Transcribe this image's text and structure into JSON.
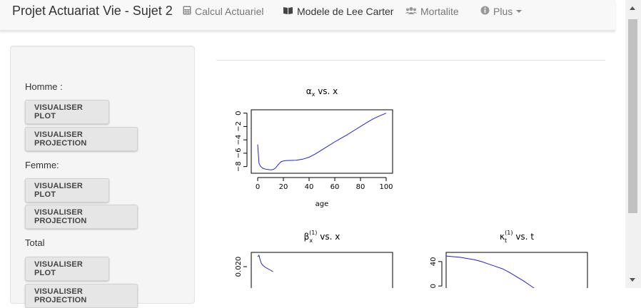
{
  "navbar": {
    "brand": "Projet Actuariat Vie - Sujet 2",
    "items": [
      {
        "label": "Calcul Actuariel",
        "icon": "calculator-icon"
      },
      {
        "label": "Modele de Lee Carter",
        "icon": "book-icon"
      },
      {
        "label": "Mortalite",
        "icon": "users-icon"
      },
      {
        "label": "Plus",
        "icon": "info-circle-icon"
      }
    ]
  },
  "sidebar": {
    "groups": [
      {
        "label": "Homme :",
        "buttons": [
          "VISUALISER PLOT",
          "VISUALISER PROJECTION"
        ]
      },
      {
        "label": "Femme:",
        "buttons": [
          "VISUALISER PLOT",
          "VISUALISER PROJECTION"
        ]
      },
      {
        "label": "Total",
        "buttons": [
          "VISUALISER PLOT",
          "VISUALISER PROJECTION"
        ]
      }
    ]
  },
  "colors": {
    "series": "#2020e0",
    "navbar_bg": "#f8f8f8",
    "sidebar_bg": "#f5f5f5",
    "button_bg": "#e6e6e6"
  },
  "chart_data": [
    {
      "type": "line",
      "title": "αx vs. x",
      "xlabel": "age",
      "ylabel": "",
      "xlim": [
        -5,
        105
      ],
      "ylim": [
        -9,
        0.5
      ],
      "xticks": [
        0,
        20,
        40,
        60,
        80,
        100
      ],
      "yticks": [
        0,
        -2,
        -4,
        -6,
        -8
      ],
      "x": [
        0,
        1,
        2,
        3,
        4,
        6,
        8,
        10,
        12,
        14,
        16,
        18,
        20,
        22,
        25,
        30,
        35,
        40,
        45,
        50,
        55,
        60,
        65,
        70,
        75,
        80,
        85,
        90,
        95,
        100
      ],
      "y": [
        -4.7,
        -7.5,
        -7.9,
        -8.1,
        -8.25,
        -8.38,
        -8.45,
        -8.5,
        -8.45,
        -8.2,
        -7.7,
        -7.3,
        -7.15,
        -7.1,
        -7.08,
        -7.05,
        -6.9,
        -6.6,
        -6.1,
        -5.5,
        -4.9,
        -4.3,
        -3.75,
        -3.2,
        -2.6,
        -2.0,
        -1.4,
        -0.85,
        -0.4,
        0.0
      ]
    },
    {
      "type": "line",
      "title": "βx(1) vs. x",
      "xlabel": "",
      "ylabel": "",
      "xlim": [
        -5,
        105
      ],
      "ylim": [
        0.0,
        0.03
      ],
      "yticks": [
        0.02
      ],
      "ytick_labels": [
        "0.020"
      ],
      "x": [
        0,
        1,
        2,
        3,
        4,
        6,
        8,
        10,
        12
      ],
      "y": [
        0.027,
        0.028,
        0.0245,
        0.022,
        0.021,
        0.0195,
        0.0185,
        0.0175,
        0.0165
      ]
    },
    {
      "type": "line",
      "title": "κt(1) vs. t",
      "xlabel": "",
      "ylabel": "",
      "xlim": [
        0,
        100
      ],
      "ylim": [
        -15,
        55
      ],
      "yticks": [
        40,
        0
      ],
      "x": [
        0,
        5,
        10,
        15,
        20,
        25,
        30,
        35,
        40,
        45,
        50,
        55,
        60,
        65
      ],
      "y": [
        49,
        48,
        47,
        45,
        43,
        40,
        36,
        32,
        28,
        22,
        15,
        8,
        0,
        -8
      ]
    }
  ]
}
